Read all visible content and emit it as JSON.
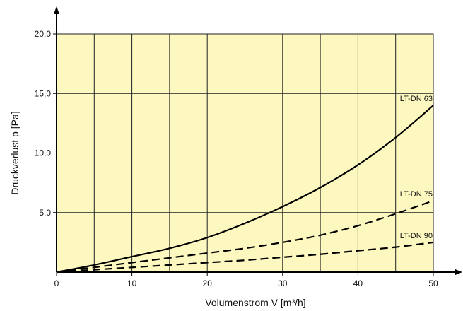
{
  "chart_data": {
    "type": "line",
    "title": "",
    "xlabel": "Volumenstrom V [m³/h]",
    "ylabel": "Druckverlust p [Pa]",
    "xlim": [
      0,
      50
    ],
    "ylim": [
      0,
      20
    ],
    "x_ticks": [
      0,
      10,
      20,
      30,
      40,
      50
    ],
    "x_tick_labels": [
      "0",
      "10",
      "20",
      "30",
      "40",
      "50"
    ],
    "y_ticks": [
      5,
      10,
      15,
      20
    ],
    "y_tick_labels": [
      "5,0",
      "10,0",
      "15,0",
      "20,0"
    ],
    "grid": true,
    "grid_x_step": 5,
    "grid_y_step": 5,
    "plot_background": "#fdf8c0",
    "series": [
      {
        "name": "LT-DN 63",
        "style": "solid",
        "x": [
          0,
          5,
          10,
          15,
          20,
          25,
          30,
          35,
          40,
          45,
          50
        ],
        "y": [
          0,
          0.6,
          1.3,
          2.0,
          2.9,
          4.1,
          5.5,
          7.1,
          9.0,
          11.3,
          14.0
        ]
      },
      {
        "name": "LT-DN 75",
        "style": "dashed",
        "x": [
          0,
          5,
          10,
          15,
          20,
          25,
          30,
          35,
          40,
          45,
          50
        ],
        "y": [
          0,
          0.4,
          0.8,
          1.2,
          1.6,
          2.0,
          2.5,
          3.1,
          3.9,
          4.9,
          6.0
        ]
      },
      {
        "name": "LT-DN 90",
        "style": "dashed",
        "x": [
          0,
          5,
          10,
          15,
          20,
          25,
          30,
          35,
          40,
          45,
          50
        ],
        "y": [
          0,
          0.2,
          0.4,
          0.6,
          0.8,
          1.0,
          1.25,
          1.5,
          1.8,
          2.1,
          2.5
        ]
      }
    ]
  }
}
